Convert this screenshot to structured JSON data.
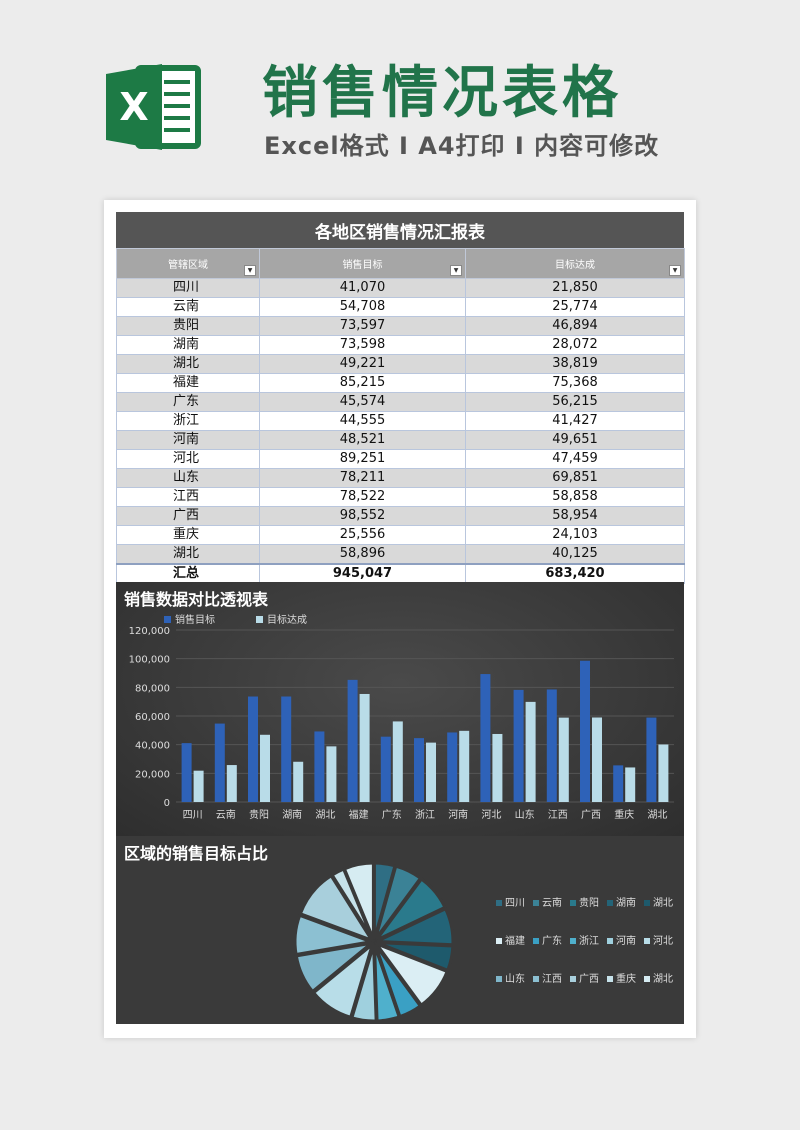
{
  "header": {
    "title": "销售情况表格",
    "subtitle": "Excel格式 I A4打印 I 内容可修改",
    "logo_letter": "X"
  },
  "table": {
    "title": "各地区销售情况汇报表",
    "columns": [
      "管辖区域",
      "销售目标",
      "目标达成"
    ],
    "rows": [
      [
        "四川",
        "41,070",
        "21,850"
      ],
      [
        "云南",
        "54,708",
        "25,774"
      ],
      [
        "贵阳",
        "73,597",
        "46,894"
      ],
      [
        "湖南",
        "73,598",
        "28,072"
      ],
      [
        "湖北",
        "49,221",
        "38,819"
      ],
      [
        "福建",
        "85,215",
        "75,368"
      ],
      [
        "广东",
        "45,574",
        "56,215"
      ],
      [
        "浙江",
        "44,555",
        "41,427"
      ],
      [
        "河南",
        "48,521",
        "49,651"
      ],
      [
        "河北",
        "89,251",
        "47,459"
      ],
      [
        "山东",
        "78,211",
        "69,851"
      ],
      [
        "江西",
        "78,522",
        "58,858"
      ],
      [
        "广西",
        "98,552",
        "58,954"
      ],
      [
        "重庆",
        "25,556",
        "24,103"
      ],
      [
        "湖北",
        "58,896",
        "40,125"
      ]
    ],
    "total": [
      "汇总",
      "945,047",
      "683,420"
    ]
  },
  "chart_data": [
    {
      "type": "bar",
      "title": "销售数据对比透视表",
      "categories": [
        "四川",
        "云南",
        "贵阳",
        "湖南",
        "湖北",
        "福建",
        "广东",
        "浙江",
        "河南",
        "河北",
        "山东",
        "江西",
        "广西",
        "重庆",
        "湖北"
      ],
      "series": [
        {
          "name": "销售目标",
          "values": [
            41070,
            54708,
            73597,
            73598,
            49221,
            85215,
            45574,
            44555,
            48521,
            89251,
            78211,
            78522,
            98552,
            25556,
            58896
          ],
          "color": "#2e62b8"
        },
        {
          "name": "目标达成",
          "values": [
            21850,
            25774,
            46894,
            28072,
            38819,
            75368,
            56215,
            41427,
            49651,
            47459,
            69851,
            58858,
            58954,
            24103,
            40125
          ],
          "color": "#b9dce8"
        }
      ],
      "ylim": [
        0,
        120000
      ],
      "yticks": [
        "0",
        "20,000",
        "40,000",
        "60,000",
        "80,000",
        "100,000",
        "120,000"
      ],
      "legend": "top-left"
    },
    {
      "type": "pie",
      "title": "区域的销售目标占比",
      "categories": [
        "四川",
        "云南",
        "贵阳",
        "湖南",
        "湖北",
        "福建",
        "广东",
        "浙江",
        "河南",
        "河北",
        "山东",
        "江西",
        "广西",
        "重庆",
        "湖北"
      ],
      "values": [
        41070,
        54708,
        73597,
        73598,
        49221,
        85215,
        45574,
        44555,
        48521,
        89251,
        78211,
        78522,
        98552,
        25556,
        58896
      ],
      "colors": [
        "#2f6e84",
        "#3b8296",
        "#2a7a8c",
        "#236478",
        "#1e5a6c",
        "#dbeef4",
        "#3aa0c4",
        "#4fb0cc",
        "#9fd0de",
        "#b8dde8",
        "#7fb6ca",
        "#8cc0d2",
        "#a8cfdc",
        "#c6e2ea",
        "#d6ecf2"
      ],
      "legend": "right"
    }
  ]
}
